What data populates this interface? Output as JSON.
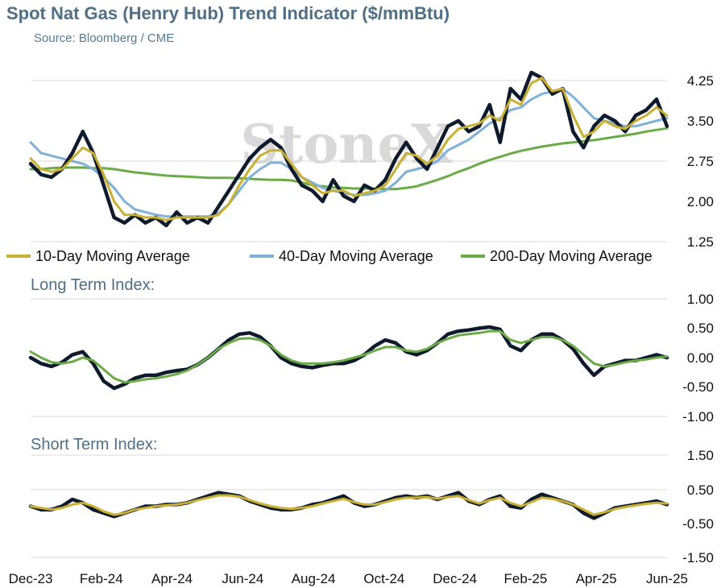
{
  "header": {
    "title": "Spot Nat Gas (Henry Hub) Trend Indicator ($/mmBtu)",
    "source": "Source: Bloomberg / CME",
    "watermark": "StoneX"
  },
  "colors": {
    "price": "#0f1a2c",
    "ma10": "#c9b032",
    "ma40": "#7fb0d8",
    "ma200": "#6aab47",
    "long_index": "#0f1a2c",
    "long_index_signal": "#6aab47",
    "short_index": "#0f1a2c",
    "short_index_signal": "#c9b032",
    "grid": "#d9d9d9",
    "title": "#4e6f86"
  },
  "chart_data": [
    {
      "type": "line",
      "title": "Spot Nat Gas (Henry Hub) Trend Indicator ($/mmBtu)",
      "ylim": [
        1.25,
        4.25
      ],
      "yticks": [
        "4.25",
        "3.50",
        "2.75",
        "2.00",
        "1.25"
      ],
      "x_axis_labels": [
        "Dec-23",
        "Feb-24",
        "Apr-24",
        "Jun-24",
        "Aug-24",
        "Oct-24",
        "Dec-24",
        "Feb-25",
        "Apr-25",
        "Jun-25"
      ],
      "legend_position": "bottom",
      "legend": [
        "10-Day Moving Average",
        "40-Day Moving Average",
        "200-Day Moving Average"
      ],
      "series": [
        {
          "key": "price",
          "values": [
            2.7,
            2.5,
            2.45,
            2.6,
            2.9,
            3.3,
            2.9,
            2.3,
            1.7,
            1.6,
            1.75,
            1.6,
            1.7,
            1.55,
            1.8,
            1.6,
            1.7,
            1.6,
            1.9,
            2.2,
            2.5,
            2.8,
            3.0,
            3.15,
            3.0,
            2.6,
            2.3,
            2.2,
            2.0,
            2.4,
            2.1,
            2.0,
            2.3,
            2.2,
            2.4,
            2.8,
            3.1,
            2.8,
            2.6,
            3.0,
            3.4,
            3.5,
            3.3,
            3.4,
            3.8,
            3.1,
            4.1,
            3.9,
            4.4,
            4.3,
            4.0,
            4.1,
            3.3,
            3.0,
            3.4,
            3.6,
            3.5,
            3.3,
            3.6,
            3.7,
            3.9,
            3.4
          ]
        },
        {
          "key": "ma10",
          "values": [
            2.8,
            2.6,
            2.55,
            2.6,
            2.8,
            3.0,
            2.9,
            2.5,
            2.0,
            1.75,
            1.75,
            1.7,
            1.7,
            1.65,
            1.7,
            1.7,
            1.7,
            1.7,
            1.75,
            1.95,
            2.3,
            2.6,
            2.85,
            2.95,
            2.95,
            2.7,
            2.45,
            2.3,
            2.15,
            2.2,
            2.2,
            2.1,
            2.15,
            2.2,
            2.3,
            2.6,
            2.9,
            2.85,
            2.7,
            2.85,
            3.15,
            3.35,
            3.4,
            3.45,
            3.6,
            3.5,
            3.9,
            3.8,
            4.2,
            4.3,
            4.05,
            4.1,
            3.6,
            3.2,
            3.3,
            3.5,
            3.4,
            3.35,
            3.5,
            3.6,
            3.75,
            3.6
          ]
        },
        {
          "key": "ma40",
          "values": [
            3.1,
            2.9,
            2.85,
            2.8,
            2.75,
            2.7,
            2.6,
            2.45,
            2.25,
            2.0,
            1.85,
            1.8,
            1.75,
            1.72,
            1.72,
            1.72,
            1.72,
            1.72,
            1.78,
            1.95,
            2.2,
            2.45,
            2.6,
            2.72,
            2.72,
            2.6,
            2.45,
            2.35,
            2.25,
            2.2,
            2.15,
            2.12,
            2.12,
            2.15,
            2.2,
            2.35,
            2.55,
            2.6,
            2.65,
            2.75,
            2.95,
            3.05,
            3.15,
            3.3,
            3.45,
            3.55,
            3.7,
            3.75,
            3.9,
            4.0,
            4.05,
            4.1,
            3.95,
            3.75,
            3.55,
            3.5,
            3.45,
            3.4,
            3.4,
            3.45,
            3.5,
            3.55
          ]
        },
        {
          "key": "ma200",
          "values": [
            2.6,
            2.6,
            2.62,
            2.63,
            2.63,
            2.63,
            2.62,
            2.62,
            2.6,
            2.57,
            2.54,
            2.52,
            2.5,
            2.48,
            2.47,
            2.46,
            2.45,
            2.44,
            2.44,
            2.44,
            2.43,
            2.42,
            2.41,
            2.4,
            2.4,
            2.39,
            2.35,
            2.3,
            2.28,
            2.26,
            2.25,
            2.24,
            2.24,
            2.24,
            2.23,
            2.23,
            2.25,
            2.28,
            2.34,
            2.4,
            2.47,
            2.55,
            2.62,
            2.7,
            2.77,
            2.83,
            2.89,
            2.94,
            2.98,
            3.02,
            3.05,
            3.08,
            3.1,
            3.12,
            3.14,
            3.17,
            3.2,
            3.23,
            3.26,
            3.3,
            3.33,
            3.36
          ]
        }
      ]
    },
    {
      "type": "line",
      "title": "Long Term Index:",
      "ylim": [
        -1.0,
        1.0
      ],
      "yticks": [
        "1.00",
        "0.50",
        "0.00",
        "-0.50",
        "-1.00"
      ],
      "series": [
        {
          "key": "long_index",
          "values": [
            0.0,
            -0.1,
            -0.15,
            -0.08,
            0.05,
            0.1,
            -0.1,
            -0.4,
            -0.52,
            -0.45,
            -0.35,
            -0.3,
            -0.3,
            -0.25,
            -0.22,
            -0.2,
            -0.12,
            0.0,
            0.15,
            0.3,
            0.4,
            0.42,
            0.35,
            0.2,
            0.0,
            -0.1,
            -0.15,
            -0.17,
            -0.13,
            -0.1,
            -0.1,
            -0.05,
            0.05,
            0.2,
            0.3,
            0.25,
            0.1,
            0.05,
            0.12,
            0.25,
            0.4,
            0.45,
            0.47,
            0.5,
            0.52,
            0.48,
            0.2,
            0.12,
            0.3,
            0.4,
            0.4,
            0.3,
            0.15,
            -0.1,
            -0.3,
            -0.15,
            -0.1,
            -0.05,
            -0.05,
            0.0,
            0.05,
            0.0
          ]
        },
        {
          "key": "long_index_signal",
          "values": [
            0.1,
            0.0,
            -0.08,
            -0.1,
            -0.07,
            0.0,
            -0.05,
            -0.2,
            -0.35,
            -0.42,
            -0.4,
            -0.37,
            -0.35,
            -0.32,
            -0.28,
            -0.22,
            -0.12,
            0.0,
            0.15,
            0.25,
            0.32,
            0.33,
            0.3,
            0.2,
            0.05,
            -0.05,
            -0.1,
            -0.1,
            -0.1,
            -0.08,
            -0.05,
            0.0,
            0.05,
            0.12,
            0.18,
            0.18,
            0.12,
            0.1,
            0.15,
            0.25,
            0.32,
            0.38,
            0.4,
            0.42,
            0.45,
            0.45,
            0.3,
            0.25,
            0.3,
            0.35,
            0.35,
            0.3,
            0.2,
            0.05,
            -0.1,
            -0.15,
            -0.12,
            -0.08,
            -0.05,
            -0.03,
            0.0,
            0.02
          ]
        }
      ]
    },
    {
      "type": "line",
      "title": "Short Term Index:",
      "ylim": [
        -1.5,
        1.5
      ],
      "yticks": [
        "1.50",
        "0.50",
        "-0.50",
        "-1.50"
      ],
      "series": [
        {
          "key": "short_index",
          "values": [
            0.0,
            -0.1,
            -0.1,
            0.0,
            0.2,
            0.1,
            -0.1,
            -0.2,
            -0.3,
            -0.2,
            -0.1,
            0.0,
            0.0,
            0.05,
            0.05,
            0.1,
            0.2,
            0.3,
            0.4,
            0.35,
            0.3,
            0.15,
            0.05,
            -0.05,
            -0.1,
            -0.1,
            -0.05,
            0.05,
            0.1,
            0.2,
            0.3,
            0.1,
            0.0,
            0.05,
            0.15,
            0.25,
            0.3,
            0.25,
            0.3,
            0.2,
            0.3,
            0.4,
            0.15,
            0.05,
            0.2,
            0.3,
            0.0,
            -0.05,
            0.2,
            0.35,
            0.25,
            0.15,
            0.05,
            -0.2,
            -0.35,
            -0.2,
            -0.05,
            0.0,
            0.05,
            0.1,
            0.15,
            0.05
          ]
        },
        {
          "key": "short_index_signal",
          "values": [
            0.0,
            -0.05,
            -0.1,
            -0.05,
            0.05,
            0.1,
            0.0,
            -0.15,
            -0.25,
            -0.2,
            -0.1,
            -0.05,
            0.0,
            0.03,
            0.05,
            0.1,
            0.18,
            0.25,
            0.32,
            0.32,
            0.28,
            0.18,
            0.08,
            0.0,
            -0.05,
            -0.08,
            -0.05,
            0.0,
            0.08,
            0.15,
            0.22,
            0.12,
            0.05,
            0.05,
            0.12,
            0.2,
            0.25,
            0.25,
            0.27,
            0.22,
            0.27,
            0.3,
            0.18,
            0.08,
            0.18,
            0.25,
            0.1,
            0.0,
            0.12,
            0.25,
            0.22,
            0.15,
            0.05,
            -0.1,
            -0.25,
            -0.18,
            -0.08,
            -0.02,
            0.03,
            0.07,
            0.1,
            0.08
          ]
        }
      ]
    }
  ]
}
